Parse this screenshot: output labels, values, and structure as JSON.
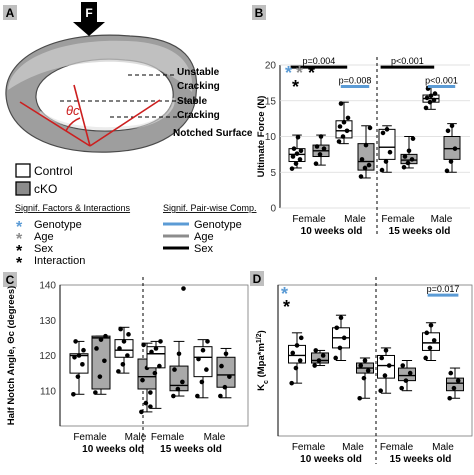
{
  "panel_a": {
    "letter": "A",
    "force_label": "F",
    "theta_label": "θc",
    "labels": [
      "Unstable",
      "Cracking",
      "Stable",
      "Cracking",
      "Notched Surface"
    ]
  },
  "legend": {
    "control": "Control",
    "cko": "cKO",
    "factors_title": "Signif. Factors & Interactions",
    "factors": [
      {
        "name": "Genotype",
        "color": "#5b9bd5"
      },
      {
        "name": "Age",
        "color": "#8c8c8c"
      },
      {
        "name": "Sex",
        "color": "#000000"
      },
      {
        "name": "Interaction",
        "color": "#000000"
      }
    ],
    "pairwise_title": "Signif. Pair-wise Comp.",
    "pairwise": [
      {
        "name": "Genotype",
        "color": "#5b9bd5"
      },
      {
        "name": "Age",
        "color": "#8c8c8c"
      },
      {
        "name": "Sex",
        "color": "#000000"
      }
    ]
  },
  "chart_data": [
    {
      "panel": "B",
      "type": "box",
      "ylabel": "Ultimate Force (N)",
      "ylim": [
        0,
        20
      ],
      "yticks": [
        0,
        5,
        10,
        15,
        20
      ],
      "sex_labels": [
        "Female",
        "Male",
        "Female",
        "Male"
      ],
      "age_labels": [
        "10 weeks old",
        "15 weeks old"
      ],
      "stars": [
        {
          "color": "#5b9bd5"
        },
        {
          "color": "#8c8c8c"
        },
        {
          "color": "#000000"
        },
        {
          "color": "#000000"
        }
      ],
      "groups": [
        {
          "name": "10w Female Control",
          "q1": 6.5,
          "median": 7.5,
          "q3": 8.3,
          "whislo": 5.6,
          "whishi": 10.2,
          "points": [
            5.5,
            6.2,
            6.8,
            7.2,
            7.6,
            8.0,
            8.3,
            9.9
          ]
        },
        {
          "name": "10w Female cKO",
          "q1": 7.2,
          "median": 8.0,
          "q3": 8.8,
          "whislo": 6.0,
          "whishi": 10.2,
          "points": [
            6.2,
            7.5,
            8.3,
            8.6,
            10.0
          ]
        },
        {
          "name": "10w Male Control",
          "q1": 9.8,
          "median": 10.8,
          "q3": 12.2,
          "whislo": 9.0,
          "whishi": 14.8,
          "points": [
            9.3,
            10.0,
            10.8,
            11.4,
            12.0,
            12.6,
            14.6
          ]
        },
        {
          "name": "10w Male cKO",
          "q1": 5.3,
          "median": 6.5,
          "q3": 9.0,
          "whislo": 4.2,
          "whishi": 11.5,
          "points": [
            4.4,
            5.6,
            6.0,
            6.8,
            8.8,
            11.2
          ]
        },
        {
          "name": "15w Female Control",
          "q1": 6.8,
          "median": 8.5,
          "q3": 11.0,
          "whislo": 5.0,
          "whishi": 11.5,
          "points": [
            5.3,
            6.5,
            7.8,
            10.5,
            11.0
          ]
        },
        {
          "name": "15w Female cKO",
          "q1": 6.2,
          "median": 6.7,
          "q3": 7.5,
          "whislo": 5.6,
          "whishi": 10.0,
          "points": [
            5.7,
            6.3,
            6.8,
            7.2,
            8.0,
            9.7
          ]
        },
        {
          "name": "15w Male Control",
          "q1": 14.8,
          "median": 15.3,
          "q3": 15.8,
          "whislo": 13.8,
          "whishi": 17.0,
          "points": [
            14.0,
            14.8,
            15.1,
            15.4,
            15.7,
            16.0,
            16.7
          ]
        },
        {
          "name": "15w Male cKO",
          "q1": 6.8,
          "median": 8.3,
          "q3": 10.0,
          "whislo": 5.0,
          "whishi": 11.8,
          "points": [
            5.2,
            6.5,
            8.3,
            10.8,
            11.5
          ]
        }
      ],
      "annotations": [
        {
          "text": "p=0.004",
          "bar": "sex",
          "from": 0,
          "to": 2,
          "y": 19.7
        },
        {
          "text": "p=0.008",
          "bar": "genotype",
          "from": 2,
          "to": 3,
          "y": 17.0
        },
        {
          "text": "p<0.001",
          "bar": "sex",
          "from": 4,
          "to": 6,
          "y": 19.7
        },
        {
          "text": "p<0.001",
          "bar": "genotype",
          "from": 6,
          "to": 7,
          "y": 17.0
        }
      ]
    },
    {
      "panel": "C",
      "type": "box",
      "ylabel": "Half Notch Angle, Θc (degrees)",
      "ylim": [
        100,
        140
      ],
      "yticks": [
        110,
        120,
        130,
        140
      ],
      "sex_labels": [
        "Female",
        "Male",
        "Female",
        "Male"
      ],
      "age_labels": [
        "10 weeks old",
        "15 weeks old"
      ],
      "groups": [
        {
          "name": "10w Female Control",
          "q1": 115.0,
          "median": 120.0,
          "q3": 120.5,
          "whislo": 109.0,
          "whishi": 124.0,
          "points": [
            109.0,
            114.0,
            117.5,
            119.5,
            120.0,
            121.5,
            124.0
          ]
        },
        {
          "name": "10w Female cKO",
          "q1": 110.5,
          "median": 125.0,
          "q3": 125.5,
          "whislo": 109.0,
          "whishi": 125.5,
          "points": [
            109.5,
            114.0,
            118.5,
            122.0,
            124.5,
            125.5
          ]
        },
        {
          "name": "10w Male Control",
          "q1": 119.5,
          "median": 121.5,
          "q3": 124.5,
          "whislo": 115.0,
          "whishi": 128.0,
          "points": [
            115.5,
            117.5,
            120.0,
            122.0,
            124.0,
            126.0,
            127.5
          ]
        },
        {
          "name": "10w Male cKO",
          "q1": 110.5,
          "median": 114.0,
          "q3": 119.0,
          "whislo": 104.0,
          "whishi": 123.5,
          "points": [
            104.0,
            106.5,
            109.5,
            113.0,
            116.5,
            120.0,
            123.0
          ]
        },
        {
          "name": "15w Female Control",
          "q1": 116.5,
          "median": 120.5,
          "q3": 122.5,
          "whislo": 105.0,
          "whishi": 124.0,
          "points": [
            105.5,
            115.0,
            117.0,
            121.0,
            122.0,
            124.0
          ]
        },
        {
          "name": "15w Female cKO",
          "q1": 110.0,
          "median": 111.5,
          "q3": 117.0,
          "whislo": 108.5,
          "whishi": 124.0,
          "points": [
            108.5,
            110.5,
            112.5,
            116.0,
            120.5,
            139.0
          ]
        },
        {
          "name": "15w Male Control",
          "q1": 114.0,
          "median": 119.5,
          "q3": 122.5,
          "whislo": 108.0,
          "whishi": 124.5,
          "points": [
            108.5,
            112.5,
            116.0,
            119.0,
            121.5,
            124.0
          ]
        },
        {
          "name": "15w Male cKO",
          "q1": 111.0,
          "median": 114.5,
          "q3": 119.5,
          "whislo": 108.0,
          "whishi": 122.0,
          "points": [
            108.5,
            111.0,
            114.0,
            117.0,
            120.5
          ]
        }
      ]
    },
    {
      "panel": "D",
      "type": "box",
      "ylabel": "Kc (Mpa*m1/2)",
      "ylabel_parts": {
        "main": "K",
        "sub": "c",
        "unit": " (Mpa*m",
        "sup": "1/2",
        "close": ")"
      },
      "ylim": [
        0,
        6
      ],
      "yticks": [],
      "sex_labels": [
        "Female",
        "Male",
        "Female",
        "Male"
      ],
      "age_labels": [
        "10 weeks old",
        "15 weeks old"
      ],
      "stars": [
        {
          "color": "#5b9bd5"
        },
        {
          "color": "#000000"
        }
      ],
      "groups": [
        {
          "name": "10w Female Control",
          "q1": 2.9,
          "median": 3.2,
          "q3": 3.6,
          "whislo": 2.1,
          "whishi": 4.1,
          "points": [
            2.1,
            2.7,
            3.0,
            3.3,
            3.6,
            3.9
          ]
        },
        {
          "name": "10w Female cKO",
          "q1": 2.9,
          "median": 3.0,
          "q3": 3.3,
          "whislo": 2.8,
          "whishi": 3.4,
          "points": [
            2.8,
            3.0,
            3.2,
            3.4
          ]
        },
        {
          "name": "10w Male Control",
          "q1": 3.5,
          "median": 3.9,
          "q3": 4.3,
          "whislo": 3.0,
          "whishi": 4.8,
          "points": [
            3.1,
            3.5,
            3.9,
            4.3,
            4.7
          ]
        },
        {
          "name": "10w Male cKO",
          "q1": 2.5,
          "median": 2.7,
          "q3": 2.9,
          "whislo": 1.5,
          "whishi": 3.1,
          "points": [
            1.5,
            2.3,
            2.6,
            2.8,
            3.0
          ]
        },
        {
          "name": "15w Female Control",
          "q1": 2.3,
          "median": 2.8,
          "q3": 3.2,
          "whislo": 1.7,
          "whishi": 3.5,
          "points": [
            1.8,
            2.4,
            2.8,
            3.1,
            3.4
          ]
        },
        {
          "name": "15w Female cKO",
          "q1": 2.2,
          "median": 2.4,
          "q3": 2.7,
          "whislo": 1.8,
          "whishi": 3.0,
          "points": [
            1.9,
            2.2,
            2.5,
            2.8
          ]
        },
        {
          "name": "15w Male Control",
          "q1": 3.4,
          "median": 3.7,
          "q3": 4.1,
          "whislo": 3.0,
          "whishi": 4.5,
          "points": [
            3.1,
            3.5,
            3.8,
            4.1,
            4.4
          ]
        },
        {
          "name": "15w Male cKO",
          "q1": 1.8,
          "median": 2.1,
          "q3": 2.3,
          "whislo": 1.5,
          "whishi": 2.7,
          "points": [
            1.5,
            1.9,
            2.2,
            2.5
          ]
        }
      ],
      "annotations": [
        {
          "text": "p=0.017",
          "bar": "genotype",
          "from": 6,
          "to": 7,
          "y": 5.6
        }
      ]
    }
  ]
}
